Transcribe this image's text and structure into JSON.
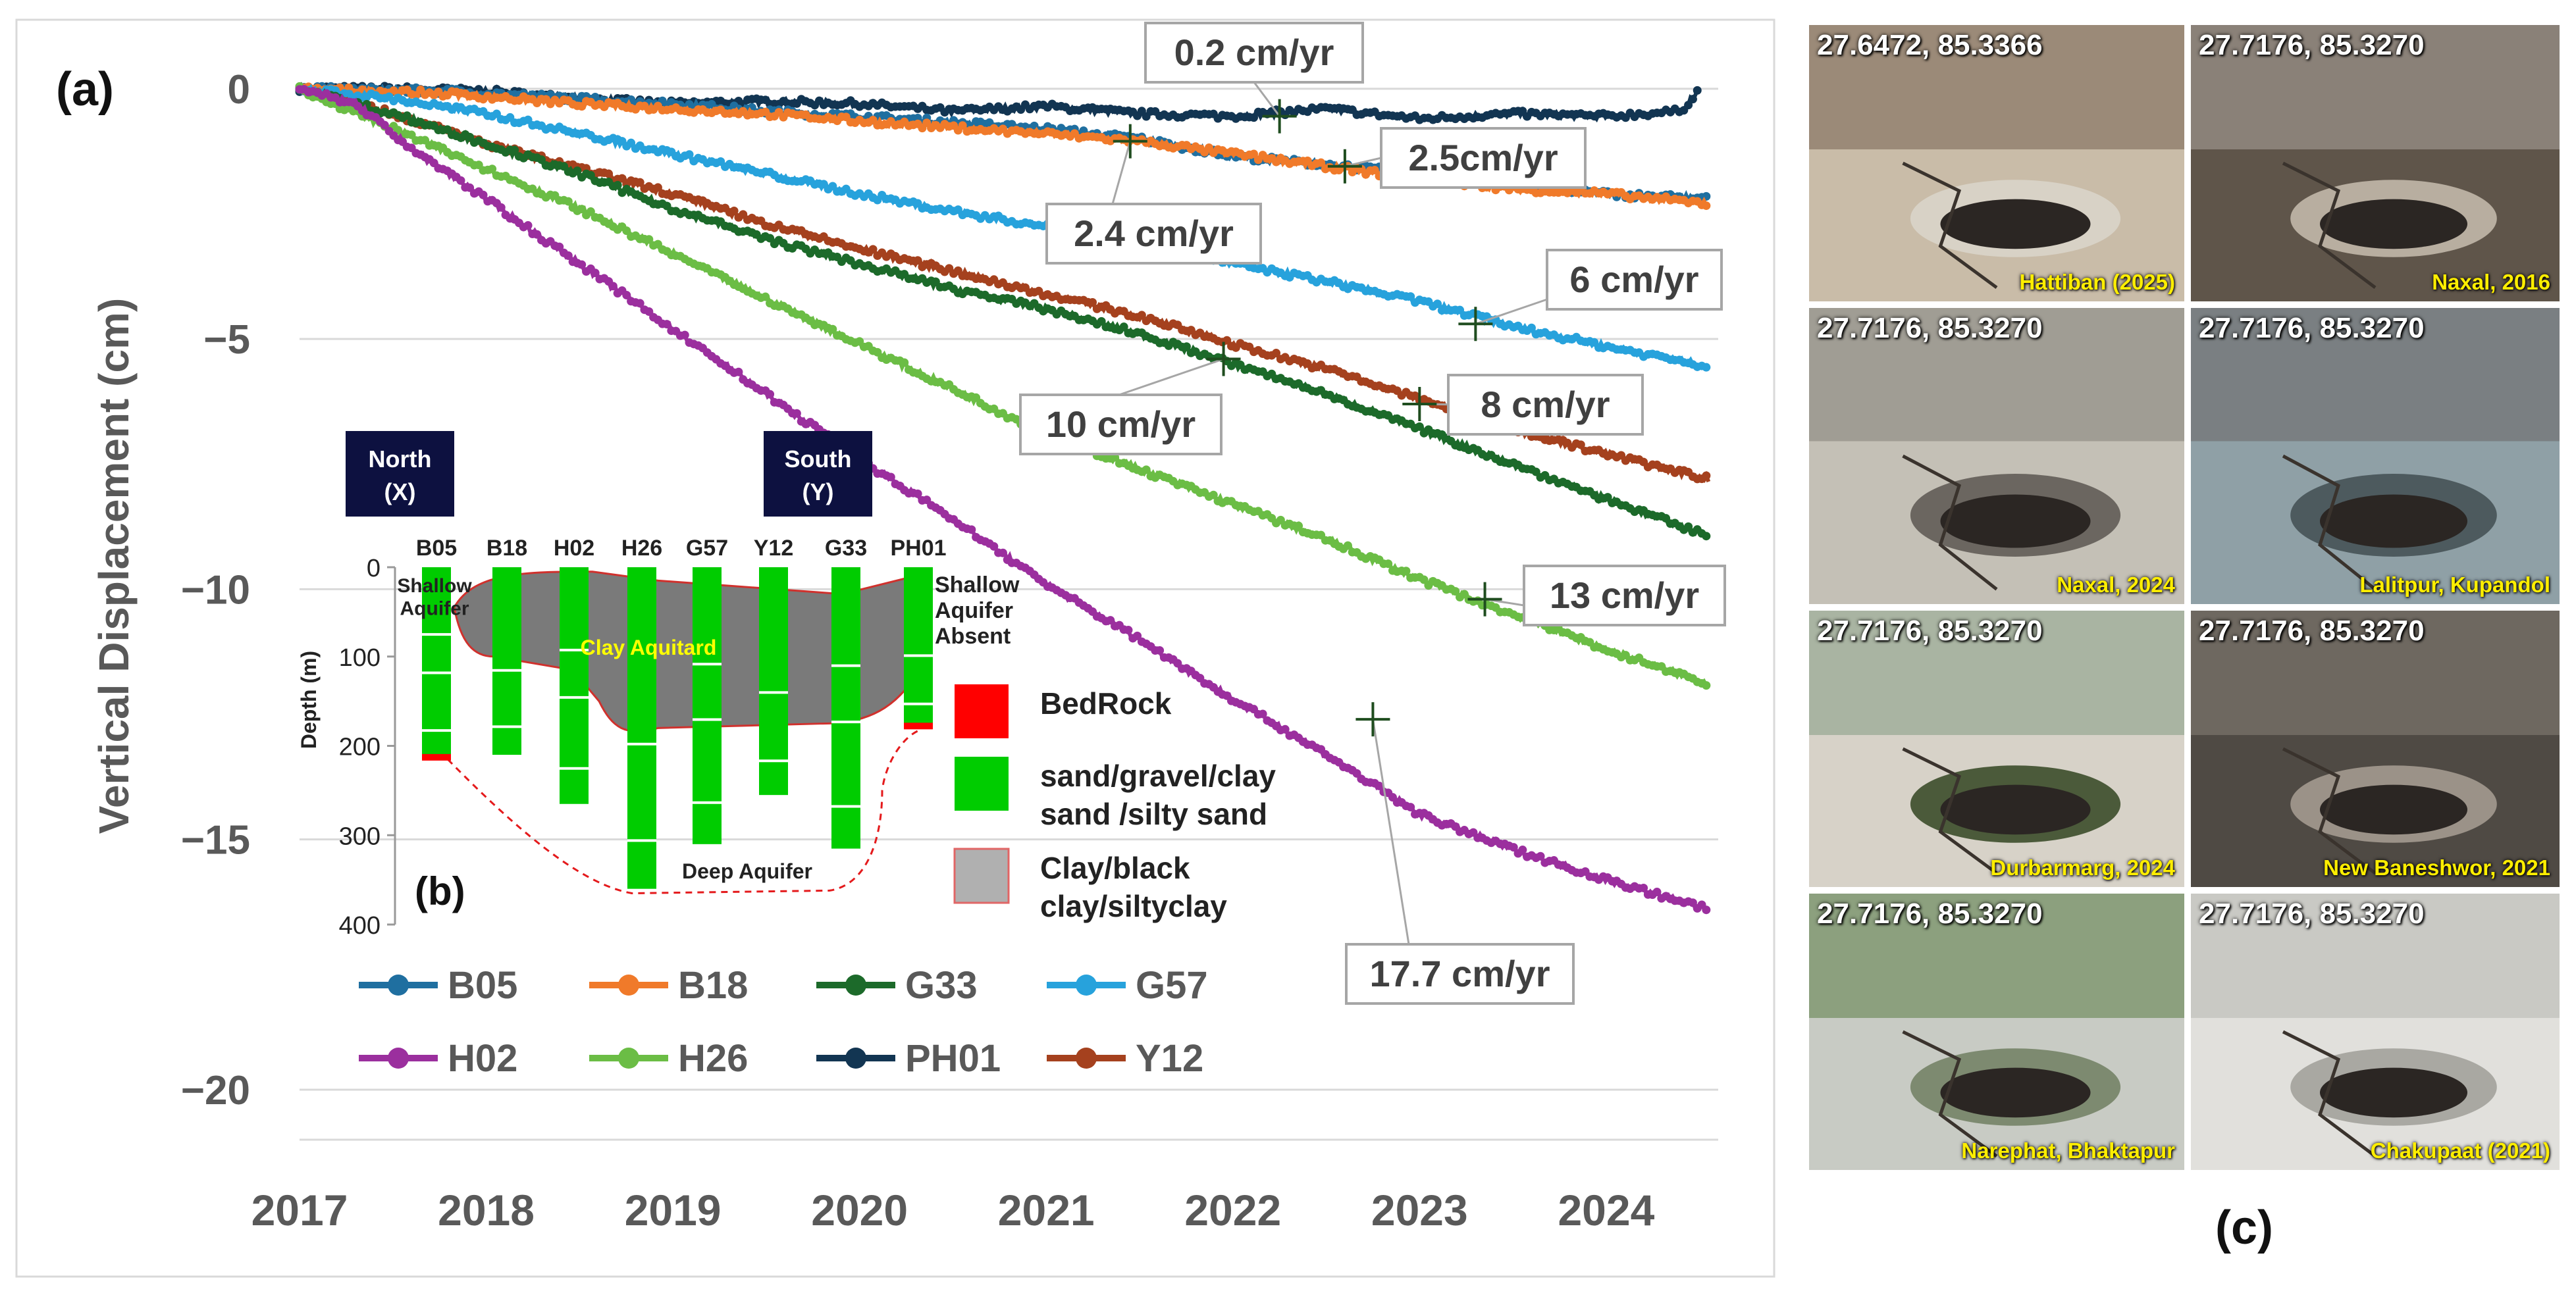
{
  "chart_data": {
    "type": "line",
    "panel_label": "(a)",
    "ylabel": "Vertical Displacement (cm)",
    "xlim": [
      2017,
      2024.6
    ],
    "ylim": [
      -21,
      0.3
    ],
    "x_ticks": [
      "2017",
      "2018",
      "2019",
      "2020",
      "2021",
      "2022",
      "2023",
      "2024"
    ],
    "y_ticks": [
      "0",
      "−5",
      "−10",
      "−15",
      "−20"
    ],
    "y_tick_values": [
      0,
      -5,
      -10,
      -15,
      -20
    ],
    "grid": "horizontal",
    "legend_position": "bottom-left",
    "series": [
      {
        "name": "B05",
        "color": "#1f6fa0",
        "points": [
          [
            2017,
            0
          ],
          [
            2017.8,
            -0.05
          ],
          [
            2018.5,
            -0.2
          ],
          [
            2019,
            -0.3
          ],
          [
            2019.5,
            -0.45
          ],
          [
            2020.2,
            -0.6
          ],
          [
            2021,
            -0.8
          ],
          [
            2021.5,
            -1.0
          ],
          [
            2022,
            -1.35
          ],
          [
            2022.6,
            -1.55
          ],
          [
            2023,
            -1.7
          ],
          [
            2023.5,
            -1.9
          ],
          [
            2024,
            -2.1
          ],
          [
            2024.55,
            -2.2
          ]
        ]
      },
      {
        "name": "B18",
        "color": "#f07a2a",
        "points": [
          [
            2017,
            0
          ],
          [
            2017.8,
            -0.1
          ],
          [
            2018.5,
            -0.3
          ],
          [
            2019,
            -0.4
          ],
          [
            2019.5,
            -0.5
          ],
          [
            2020.2,
            -0.7
          ],
          [
            2021,
            -0.9
          ],
          [
            2021.5,
            -1.05
          ],
          [
            2022,
            -1.3
          ],
          [
            2022.6,
            -1.6
          ],
          [
            2023,
            -1.8
          ],
          [
            2023.5,
            -2.0
          ],
          [
            2024,
            -2.1
          ],
          [
            2024.55,
            -2.3
          ]
        ]
      },
      {
        "name": "G33",
        "color": "#1c6a2a",
        "points": [
          [
            2017,
            0
          ],
          [
            2017.5,
            -0.5
          ],
          [
            2018,
            -1.1
          ],
          [
            2018.5,
            -1.7
          ],
          [
            2019,
            -2.4
          ],
          [
            2019.5,
            -3.0
          ],
          [
            2020,
            -3.5
          ],
          [
            2020.5,
            -4.0
          ],
          [
            2021,
            -4.4
          ],
          [
            2021.5,
            -4.9
          ],
          [
            2022,
            -5.5
          ],
          [
            2022.5,
            -6.1
          ],
          [
            2023,
            -6.8
          ],
          [
            2023.5,
            -7.5
          ],
          [
            2024,
            -8.2
          ],
          [
            2024.55,
            -8.95
          ]
        ]
      },
      {
        "name": "G57",
        "color": "#27a2dc",
        "points": [
          [
            2017,
            0
          ],
          [
            2017.5,
            -0.2
          ],
          [
            2018,
            -0.5
          ],
          [
            2018.5,
            -0.9
          ],
          [
            2019,
            -1.3
          ],
          [
            2019.5,
            -1.7
          ],
          [
            2020,
            -2.1
          ],
          [
            2020.5,
            -2.45
          ],
          [
            2021,
            -2.75
          ],
          [
            2021.5,
            -3.1
          ],
          [
            2022,
            -3.5
          ],
          [
            2022.5,
            -3.85
          ],
          [
            2023,
            -4.25
          ],
          [
            2023.5,
            -4.75
          ],
          [
            2024,
            -5.15
          ],
          [
            2024.55,
            -5.55
          ]
        ]
      },
      {
        "name": "H02",
        "color": "#9b2f9e",
        "points": [
          [
            2017,
            0
          ],
          [
            2017.3,
            -0.3
          ],
          [
            2017.6,
            -1.2
          ],
          [
            2018,
            -2.2
          ],
          [
            2018.5,
            -3.5
          ],
          [
            2019,
            -4.8
          ],
          [
            2019.5,
            -6.1
          ],
          [
            2020,
            -7.4
          ],
          [
            2020.5,
            -8.6
          ],
          [
            2021,
            -9.9
          ],
          [
            2021.5,
            -11.0
          ],
          [
            2022,
            -12.2
          ],
          [
            2022.5,
            -13.3
          ],
          [
            2023,
            -14.5
          ],
          [
            2023.5,
            -15.2
          ],
          [
            2024,
            -15.8
          ],
          [
            2024.55,
            -16.4
          ]
        ]
      },
      {
        "name": "H26",
        "color": "#6bbd45",
        "points": [
          [
            2017,
            0
          ],
          [
            2017.5,
            -0.8
          ],
          [
            2018,
            -1.6
          ],
          [
            2018.5,
            -2.4
          ],
          [
            2019,
            -3.3
          ],
          [
            2019.5,
            -4.2
          ],
          [
            2020,
            -5.1
          ],
          [
            2020.5,
            -6.0
          ],
          [
            2021,
            -6.9
          ],
          [
            2021.5,
            -7.6
          ],
          [
            2022,
            -8.3
          ],
          [
            2022.5,
            -9.0
          ],
          [
            2023,
            -9.8
          ],
          [
            2023.5,
            -10.5
          ],
          [
            2024,
            -11.2
          ],
          [
            2024.55,
            -11.9
          ]
        ]
      },
      {
        "name": "PH01",
        "color": "#123552",
        "points": [
          [
            2017,
            0
          ],
          [
            2017.5,
            0
          ],
          [
            2018,
            -0.05
          ],
          [
            2018.5,
            -0.2
          ],
          [
            2019,
            -0.3
          ],
          [
            2019.5,
            -0.25
          ],
          [
            2020,
            -0.3
          ],
          [
            2020.5,
            -0.45
          ],
          [
            2021,
            -0.35
          ],
          [
            2021.5,
            -0.5
          ],
          [
            2022,
            -0.55
          ],
          [
            2022.5,
            -0.4
          ],
          [
            2023,
            -0.6
          ],
          [
            2023.5,
            -0.5
          ],
          [
            2024,
            -0.55
          ],
          [
            2024.4,
            -0.45
          ],
          [
            2024.5,
            0
          ]
        ]
      },
      {
        "name": "Y12",
        "color": "#a5411e",
        "points": [
          [
            2017,
            0
          ],
          [
            2017.5,
            -0.5
          ],
          [
            2018,
            -1.1
          ],
          [
            2018.5,
            -1.6
          ],
          [
            2019,
            -2.1
          ],
          [
            2019.5,
            -2.7
          ],
          [
            2020,
            -3.2
          ],
          [
            2020.5,
            -3.65
          ],
          [
            2021,
            -4.1
          ],
          [
            2021.5,
            -4.55
          ],
          [
            2022,
            -5.1
          ],
          [
            2022.5,
            -5.6
          ],
          [
            2023,
            -6.2
          ],
          [
            2023.5,
            -6.8
          ],
          [
            2024,
            -7.3
          ],
          [
            2024.55,
            -7.8
          ]
        ]
      }
    ],
    "annotations": [
      {
        "text": "0.2 cm/yr",
        "x": 2022.25,
        "y": -0.55
      },
      {
        "text": "2.5cm/yr",
        "x": 2022.6,
        "y": -1.55
      },
      {
        "text": "2.4 cm/yr",
        "x": 2021.45,
        "y": -1.05
      },
      {
        "text": "6 cm/yr",
        "x": 2023.3,
        "y": -4.7
      },
      {
        "text": "10 cm/yr",
        "x": 2021.95,
        "y": -5.4
      },
      {
        "text": "8 cm/yr",
        "x": 2023.0,
        "y": -6.3
      },
      {
        "text": "13 cm/yr",
        "x": 2023.35,
        "y": -10.2
      },
      {
        "text": "17.7 cm/yr",
        "x": 2022.75,
        "y": -12.6
      }
    ]
  },
  "inset": {
    "panel_label": "(b)",
    "north_label": "North",
    "north_sub": "(X)",
    "south_label": "South",
    "south_sub": "(Y)",
    "ylabel": "Depth (m)",
    "y_ticks": [
      "0",
      "100",
      "200",
      "300",
      "400"
    ],
    "y_tick_values": [
      0,
      100,
      200,
      300,
      400
    ],
    "wells": [
      {
        "name": "B05",
        "depth": 215
      },
      {
        "name": "B18",
        "depth": 210
      },
      {
        "name": "H02",
        "depth": 265
      },
      {
        "name": "H26",
        "depth": 360
      },
      {
        "name": "G57",
        "depth": 310
      },
      {
        "name": "Y12",
        "depth": 255
      },
      {
        "name": "G33",
        "depth": 315
      },
      {
        "name": "PH01",
        "depth": 180
      }
    ],
    "labels": {
      "shallow_aquifer": [
        "Shallow",
        "Aquifer"
      ],
      "clay_aquitard": "Clay Aquitard",
      "deep_aquifer": "Deep Aquifer",
      "shallow_absent": [
        "Shallow",
        "Aquifer",
        "Absent"
      ]
    },
    "legend": [
      {
        "label": [
          "BedRock"
        ],
        "color": "#ff0000"
      },
      {
        "label": [
          "sand/gravel/clay",
          "sand /silty sand"
        ],
        "color": "#00cc00"
      },
      {
        "label": [
          "Clay/black",
          "clay/siltyclay"
        ],
        "color": "#b0b0b0"
      }
    ]
  },
  "photos": {
    "panel_label": "(c)",
    "items": [
      {
        "coord": "27.6472, 85.3366",
        "place": "Hattiban (2025)"
      },
      {
        "coord": "27.7176, 85.3270",
        "place": "Naxal, 2016"
      },
      {
        "coord": "27.7176, 85.3270",
        "place": "Naxal, 2024"
      },
      {
        "coord": "27.7176, 85.3270",
        "place": "Lalitpur, Kupandol"
      },
      {
        "coord": "27.7176, 85.3270",
        "place": "Durbarmarg, 2024"
      },
      {
        "coord": "27.7176, 85.3270",
        "place": "New Baneshwor, 2021"
      },
      {
        "coord": "27.7176, 85.3270",
        "place": "Narephat, Bhaktapur"
      },
      {
        "coord": "27.7176, 85.3270",
        "place": "Chakupaat (2021)"
      }
    ]
  }
}
